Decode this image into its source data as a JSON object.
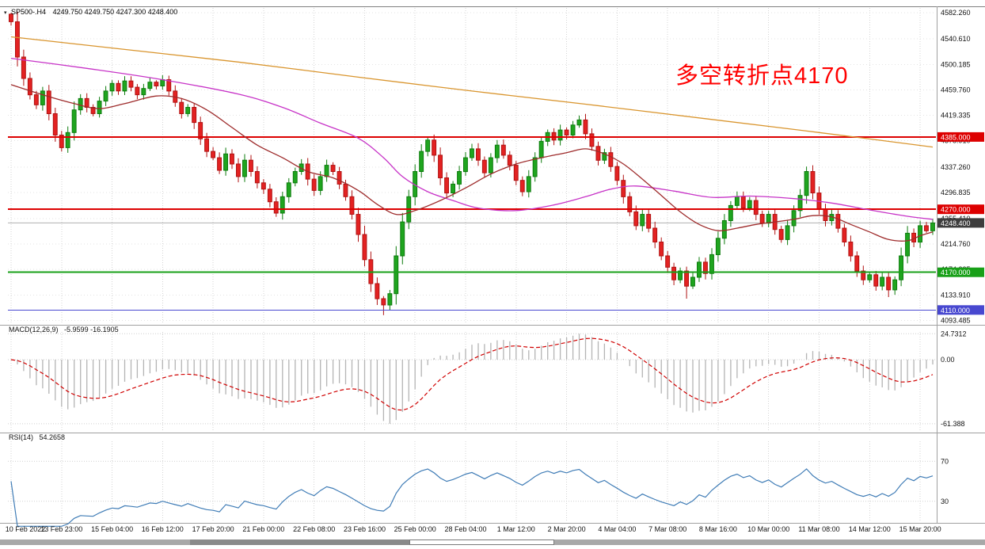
{
  "header": {
    "icon": "▾",
    "symbol": "SP500-.H4",
    "ohlc": "4249.750 4249.750 4247.300 4248.400"
  },
  "annotation": {
    "text": "多空转折点4170",
    "color": "#ff0000"
  },
  "scrollbar": {
    "track_color": "#a8a8a8",
    "segment_color": "#8a8a8a",
    "thumb_color": "#ffffff"
  },
  "chart_data": [
    {
      "type": "candlestick",
      "title": "SP500-.H4",
      "ylim": [
        4093.485,
        4582.26
      ],
      "price_ticks": [
        "4582.260",
        "4540.610",
        "4500.185",
        "4459.760",
        "4419.335",
        "4378.910",
        "4337.260",
        "4296.835",
        "4255.410",
        "4214.760",
        "4174.335",
        "4133.910",
        "4093.485"
      ],
      "x_labels": [
        {
          "i": 0,
          "t": "10 Feb 2022"
        },
        {
          "i": 8,
          "t": "13 Feb 23:00"
        },
        {
          "i": 16,
          "t": "15 Feb 04:00"
        },
        {
          "i": 24,
          "t": "16 Feb 12:00"
        },
        {
          "i": 32,
          "t": "17 Feb 20:00"
        },
        {
          "i": 40,
          "t": "21 Feb 00:00"
        },
        {
          "i": 48,
          "t": "22 Feb 08:00"
        },
        {
          "i": 56,
          "t": "23 Feb 16:00"
        },
        {
          "i": 64,
          "t": "25 Feb 00:00"
        },
        {
          "i": 72,
          "t": "28 Feb 04:00"
        },
        {
          "i": 80,
          "t": "1 Mar 12:00"
        },
        {
          "i": 88,
          "t": "2 Mar 20:00"
        },
        {
          "i": 96,
          "t": "4 Mar 04:00"
        },
        {
          "i": 104,
          "t": "7 Mar 08:00"
        },
        {
          "i": 112,
          "t": "8 Mar 16:00"
        },
        {
          "i": 120,
          "t": "10 Mar 00:00"
        },
        {
          "i": 128,
          "t": "11 Mar 08:00"
        },
        {
          "i": 136,
          "t": "14 Mar 12:00"
        },
        {
          "i": 144,
          "t": "15 Mar 20:00"
        }
      ],
      "first_open": 4580,
      "closes": [
        4568,
        4512,
        4478,
        4452,
        4436,
        4458,
        4422,
        4388,
        4368,
        4392,
        4428,
        4446,
        4432,
        4422,
        4442,
        4458,
        4470,
        4458,
        4474,
        4464,
        4452,
        4462,
        4472,
        4466,
        4476,
        4458,
        4440,
        4422,
        4432,
        4408,
        4382,
        4362,
        4352,
        4332,
        4358,
        4342,
        4322,
        4348,
        4330,
        4312,
        4302,
        4282,
        4264,
        4290,
        4312,
        4330,
        4342,
        4318,
        4300,
        4322,
        4340,
        4330,
        4310,
        4290,
        4262,
        4230,
        4190,
        4152,
        4128,
        4118,
        4136,
        4196,
        4250,
        4290,
        4330,
        4362,
        4380,
        4356,
        4320,
        4296,
        4310,
        4330,
        4352,
        4366,
        4348,
        4328,
        4352,
        4372,
        4356,
        4340,
        4316,
        4298,
        4322,
        4352,
        4378,
        4392,
        4380,
        4396,
        4388,
        4404,
        4412,
        4390,
        4370,
        4348,
        4360,
        4338,
        4316,
        4290,
        4266,
        4244,
        4262,
        4240,
        4218,
        4196,
        4178,
        4158,
        4172,
        4148,
        4162,
        4186,
        4168,
        4198,
        4224,
        4252,
        4276,
        4290,
        4272,
        4284,
        4262,
        4248,
        4262,
        4238,
        4222,
        4244,
        4268,
        4292,
        4330,
        4296,
        4270,
        4252,
        4262,
        4240,
        4218,
        4196,
        4172,
        4158,
        4166,
        4148,
        4162,
        4142,
        4158,
        4196,
        4232,
        4218,
        4244,
        4236,
        4248.4
      ],
      "wick_overrides": {
        "0": {
          "h": 4582.2
        },
        "59": {
          "l": 4101.8
        },
        "107": {
          "l": 4128.0
        },
        "126": {
          "h": 4338.0
        },
        "139": {
          "l": 4130.5
        }
      },
      "candle_colors": {
        "up_fill": "#1fa51f",
        "up_stroke": "#0d7c0d",
        "down_fill": "#e32222",
        "down_stroke": "#b01212"
      },
      "hlines": [
        {
          "price": 4385.0,
          "label": "4385.000",
          "color": "#dd0000",
          "width": 2
        },
        {
          "price": 4270.0,
          "label": "4270.000",
          "color": "#dd0000",
          "width": 2
        },
        {
          "price": 4170.0,
          "label": "4170.000",
          "color": "#18a018",
          "width": 2
        },
        {
          "price": 4110.0,
          "label": "4110.000",
          "color": "#4848d0",
          "width": 1
        }
      ],
      "last_price": {
        "value": 4248.4,
        "label": "4248.400",
        "box_color": "#3d3d3d",
        "line_color": "#b0b0b0"
      },
      "moving_averages": [
        {
          "name": "ma-slow",
          "color": "#d9952e",
          "points": [
            [
              0,
              4544
            ],
            [
              18,
              4524
            ],
            [
              36,
              4504
            ],
            [
              55,
              4480
            ],
            [
              73,
              4458
            ],
            [
              91,
              4437
            ],
            [
              110,
              4414
            ],
            [
              128,
              4392
            ],
            [
              146,
              4369
            ]
          ]
        },
        {
          "name": "ma-medium",
          "color": "#c733c7",
          "points": [
            [
              0,
              4510
            ],
            [
              12,
              4494
            ],
            [
              24,
              4476
            ],
            [
              36,
              4453
            ],
            [
              43,
              4432
            ],
            [
              49,
              4407
            ],
            [
              55,
              4383
            ],
            [
              59,
              4352
            ],
            [
              62,
              4322
            ],
            [
              66,
              4298
            ],
            [
              70,
              4284
            ],
            [
              74,
              4272
            ],
            [
              80,
              4268
            ],
            [
              86,
              4277
            ],
            [
              91,
              4290
            ],
            [
              95,
              4302
            ],
            [
              99,
              4307
            ],
            [
              105,
              4299
            ],
            [
              111,
              4289
            ],
            [
              117,
              4291
            ],
            [
              124,
              4287
            ],
            [
              130,
              4280
            ],
            [
              136,
              4269
            ],
            [
              142,
              4259
            ],
            [
              146,
              4254
            ]
          ]
        },
        {
          "name": "ma-fast",
          "color": "#9e2b2b",
          "points": [
            [
              0,
              4468
            ],
            [
              5,
              4452
            ],
            [
              10,
              4438
            ],
            [
              14,
              4430
            ],
            [
              18,
              4438
            ],
            [
              23,
              4450
            ],
            [
              27,
              4446
            ],
            [
              31,
              4428
            ],
            [
              35,
              4400
            ],
            [
              39,
              4372
            ],
            [
              43,
              4352
            ],
            [
              47,
              4330
            ],
            [
              51,
              4320
            ],
            [
              55,
              4300
            ],
            [
              58,
              4278
            ],
            [
              61,
              4262
            ],
            [
              64,
              4268
            ],
            [
              68,
              4284
            ],
            [
              72,
              4304
            ],
            [
              76,
              4326
            ],
            [
              80,
              4342
            ],
            [
              84,
              4352
            ],
            [
              88,
              4360
            ],
            [
              91,
              4366
            ],
            [
              94,
              4358
            ],
            [
              97,
              4342
            ],
            [
              100,
              4318
            ],
            [
              103,
              4292
            ],
            [
              106,
              4266
            ],
            [
              109,
              4246
            ],
            [
              112,
              4236
            ],
            [
              115,
              4240
            ],
            [
              118,
              4246
            ],
            [
              121,
              4250
            ],
            [
              124,
              4254
            ],
            [
              127,
              4260
            ],
            [
              130,
              4258
            ],
            [
              133,
              4246
            ],
            [
              136,
              4234
            ],
            [
              139,
              4222
            ],
            [
              142,
              4220
            ],
            [
              144,
              4228
            ],
            [
              146,
              4234
            ]
          ]
        }
      ]
    },
    {
      "type": "macd",
      "label": "MACD(12,26,9)",
      "values": "-5.9599 -16.1905",
      "params": [
        12,
        26,
        9
      ],
      "axis_ticks": [
        {
          "v": 24.7312,
          "t": "24.7312"
        },
        {
          "v": 0,
          "t": "0.00"
        },
        {
          "v": -61.388,
          "t": "-61.388"
        }
      ],
      "scale_max": 24.7312,
      "scale_min": -61.388,
      "histogram_color": "#b4b4b4",
      "signal_color": "#d00000"
    },
    {
      "type": "rsi",
      "label": "RSI(14)",
      "value": "54.2658",
      "period": 14,
      "levels": [
        70,
        30
      ],
      "axis_ticks": [
        "70",
        "30"
      ],
      "line_color": "#3f7cb6"
    }
  ]
}
